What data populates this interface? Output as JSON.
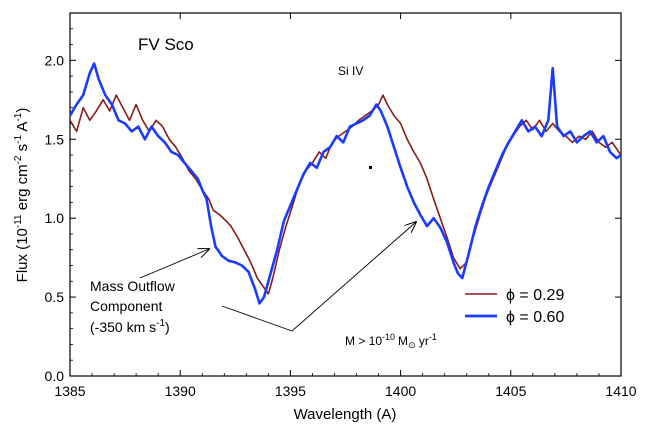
{
  "chart_data": {
    "type": "line",
    "title": "FV Sco",
    "xlabel": "Wavelength (A)",
    "ylabel_parts": {
      "prefix": "Flux (10",
      "exp1": "-11",
      "mid": " erg cm",
      "exp2": "-2",
      "mid2": " s",
      "exp3": "-1",
      "mid3": " A",
      "exp4": "-1",
      "suffix": ")"
    },
    "xlim": [
      1385,
      1410
    ],
    "ylim": [
      0.0,
      2.3
    ],
    "x_ticks": [
      1385,
      1390,
      1395,
      1400,
      1405,
      1410
    ],
    "x_tick_labels": [
      "1385",
      "1390",
      "1395",
      "1400",
      "1405",
      "1410"
    ],
    "y_ticks": [
      0.0,
      0.5,
      1.0,
      1.5,
      2.0
    ],
    "y_tick_labels": [
      "0.0",
      "0.5",
      "1.0",
      "1.5",
      "2.0"
    ],
    "grid": false,
    "legend_position": "lower-right",
    "series": [
      {
        "name": "ϕ = 0.29",
        "color": "#8b1a1a",
        "width": 1.6,
        "points": [
          [
            1385.0,
            1.62
          ],
          [
            1385.3,
            1.55
          ],
          [
            1385.6,
            1.7
          ],
          [
            1385.9,
            1.62
          ],
          [
            1386.2,
            1.68
          ],
          [
            1386.5,
            1.75
          ],
          [
            1386.8,
            1.68
          ],
          [
            1387.1,
            1.78
          ],
          [
            1387.4,
            1.7
          ],
          [
            1387.7,
            1.62
          ],
          [
            1388.0,
            1.72
          ],
          [
            1388.3,
            1.62
          ],
          [
            1388.6,
            1.55
          ],
          [
            1388.9,
            1.62
          ],
          [
            1389.2,
            1.58
          ],
          [
            1389.5,
            1.5
          ],
          [
            1389.8,
            1.45
          ],
          [
            1390.1,
            1.38
          ],
          [
            1390.4,
            1.3
          ],
          [
            1390.7,
            1.25
          ],
          [
            1391.0,
            1.18
          ],
          [
            1391.3,
            1.12
          ],
          [
            1391.5,
            1.05
          ],
          [
            1391.8,
            1.02
          ],
          [
            1392.1,
            0.98
          ],
          [
            1392.3,
            0.95
          ],
          [
            1392.6,
            0.88
          ],
          [
            1392.9,
            0.8
          ],
          [
            1393.2,
            0.72
          ],
          [
            1393.5,
            0.62
          ],
          [
            1393.7,
            0.58
          ],
          [
            1394.0,
            0.52
          ],
          [
            1394.2,
            0.62
          ],
          [
            1394.5,
            0.8
          ],
          [
            1394.8,
            0.95
          ],
          [
            1395.1,
            1.08
          ],
          [
            1395.4,
            1.22
          ],
          [
            1395.7,
            1.3
          ],
          [
            1396.0,
            1.35
          ],
          [
            1396.3,
            1.42
          ],
          [
            1396.6,
            1.38
          ],
          [
            1396.9,
            1.48
          ],
          [
            1397.2,
            1.52
          ],
          [
            1397.5,
            1.55
          ],
          [
            1397.8,
            1.58
          ],
          [
            1398.1,
            1.62
          ],
          [
            1398.4,
            1.65
          ],
          [
            1398.7,
            1.68
          ],
          [
            1399.0,
            1.72
          ],
          [
            1399.2,
            1.78
          ],
          [
            1399.4,
            1.72
          ],
          [
            1399.7,
            1.65
          ],
          [
            1400.0,
            1.6
          ],
          [
            1400.3,
            1.5
          ],
          [
            1400.6,
            1.42
          ],
          [
            1400.9,
            1.35
          ],
          [
            1401.2,
            1.25
          ],
          [
            1401.5,
            1.12
          ],
          [
            1401.8,
            1.0
          ],
          [
            1402.1,
            0.88
          ],
          [
            1402.4,
            0.75
          ],
          [
            1402.7,
            0.68
          ],
          [
            1403.0,
            0.72
          ],
          [
            1403.3,
            0.88
          ],
          [
            1403.6,
            1.02
          ],
          [
            1403.9,
            1.15
          ],
          [
            1404.2,
            1.25
          ],
          [
            1404.5,
            1.35
          ],
          [
            1404.8,
            1.45
          ],
          [
            1405.1,
            1.52
          ],
          [
            1405.4,
            1.58
          ],
          [
            1405.7,
            1.62
          ],
          [
            1406.0,
            1.56
          ],
          [
            1406.3,
            1.62
          ],
          [
            1406.6,
            1.55
          ],
          [
            1406.9,
            1.6
          ],
          [
            1407.2,
            1.55
          ],
          [
            1407.5,
            1.52
          ],
          [
            1407.8,
            1.48
          ],
          [
            1408.1,
            1.52
          ],
          [
            1408.4,
            1.5
          ],
          [
            1408.7,
            1.55
          ],
          [
            1409.0,
            1.48
          ],
          [
            1409.3,
            1.45
          ],
          [
            1409.6,
            1.48
          ],
          [
            1409.9,
            1.42
          ],
          [
            1410.0,
            1.4
          ]
        ]
      },
      {
        "name": "ϕ = 0.60",
        "color": "#1a3cff",
        "width": 2.6,
        "points": [
          [
            1385.0,
            1.65
          ],
          [
            1385.3,
            1.72
          ],
          [
            1385.6,
            1.78
          ],
          [
            1385.9,
            1.92
          ],
          [
            1386.1,
            1.98
          ],
          [
            1386.3,
            1.88
          ],
          [
            1386.6,
            1.78
          ],
          [
            1386.9,
            1.72
          ],
          [
            1387.2,
            1.62
          ],
          [
            1387.5,
            1.6
          ],
          [
            1387.8,
            1.55
          ],
          [
            1388.1,
            1.58
          ],
          [
            1388.4,
            1.5
          ],
          [
            1388.7,
            1.58
          ],
          [
            1389.0,
            1.52
          ],
          [
            1389.3,
            1.48
          ],
          [
            1389.6,
            1.42
          ],
          [
            1389.9,
            1.4
          ],
          [
            1390.2,
            1.35
          ],
          [
            1390.5,
            1.3
          ],
          [
            1390.8,
            1.25
          ],
          [
            1391.0,
            1.18
          ],
          [
            1391.2,
            1.12
          ],
          [
            1391.4,
            0.95
          ],
          [
            1391.6,
            0.82
          ],
          [
            1391.9,
            0.76
          ],
          [
            1392.2,
            0.73
          ],
          [
            1392.5,
            0.72
          ],
          [
            1392.8,
            0.7
          ],
          [
            1393.1,
            0.66
          ],
          [
            1393.4,
            0.55
          ],
          [
            1393.6,
            0.46
          ],
          [
            1393.8,
            0.5
          ],
          [
            1394.1,
            0.65
          ],
          [
            1394.4,
            0.8
          ],
          [
            1394.7,
            0.98
          ],
          [
            1395.0,
            1.08
          ],
          [
            1395.3,
            1.18
          ],
          [
            1395.6,
            1.28
          ],
          [
            1395.9,
            1.35
          ],
          [
            1396.2,
            1.32
          ],
          [
            1396.5,
            1.42
          ],
          [
            1396.8,
            1.45
          ],
          [
            1397.1,
            1.52
          ],
          [
            1397.4,
            1.48
          ],
          [
            1397.7,
            1.58
          ],
          [
            1398.0,
            1.6
          ],
          [
            1398.3,
            1.62
          ],
          [
            1398.6,
            1.65
          ],
          [
            1398.9,
            1.72
          ],
          [
            1399.1,
            1.68
          ],
          [
            1399.4,
            1.58
          ],
          [
            1399.7,
            1.45
          ],
          [
            1400.0,
            1.32
          ],
          [
            1400.3,
            1.2
          ],
          [
            1400.6,
            1.1
          ],
          [
            1400.9,
            1.02
          ],
          [
            1401.2,
            0.95
          ],
          [
            1401.5,
            1.0
          ],
          [
            1401.8,
            0.94
          ],
          [
            1402.1,
            0.85
          ],
          [
            1402.4,
            0.72
          ],
          [
            1402.6,
            0.65
          ],
          [
            1402.8,
            0.62
          ],
          [
            1403.1,
            0.78
          ],
          [
            1403.4,
            0.95
          ],
          [
            1403.7,
            1.08
          ],
          [
            1404.0,
            1.2
          ],
          [
            1404.3,
            1.3
          ],
          [
            1404.6,
            1.4
          ],
          [
            1404.9,
            1.48
          ],
          [
            1405.2,
            1.55
          ],
          [
            1405.5,
            1.62
          ],
          [
            1405.8,
            1.55
          ],
          [
            1406.1,
            1.58
          ],
          [
            1406.4,
            1.52
          ],
          [
            1406.7,
            1.62
          ],
          [
            1406.9,
            1.95
          ],
          [
            1407.1,
            1.58
          ],
          [
            1407.4,
            1.52
          ],
          [
            1407.7,
            1.55
          ],
          [
            1408.0,
            1.48
          ],
          [
            1408.3,
            1.52
          ],
          [
            1408.6,
            1.55
          ],
          [
            1408.9,
            1.48
          ],
          [
            1409.2,
            1.52
          ],
          [
            1409.5,
            1.42
          ],
          [
            1409.8,
            1.38
          ],
          [
            1410.0,
            1.4
          ]
        ]
      }
    ],
    "annotations": {
      "si_iv": "Si IV",
      "outflow_line1": "Mass Outflow",
      "outflow_line2": "Component",
      "outflow_line3_prefix": "(-350 km s",
      "outflow_line3_exp": "-1",
      "outflow_line3_suffix": ")",
      "mdot_prefix": "M > 10",
      "mdot_exp": "-10",
      "mdot_unit": "M",
      "mdot_sun": "⊙",
      "mdot_suffix": " yr",
      "mdot_suffix_exp": "-1"
    }
  }
}
